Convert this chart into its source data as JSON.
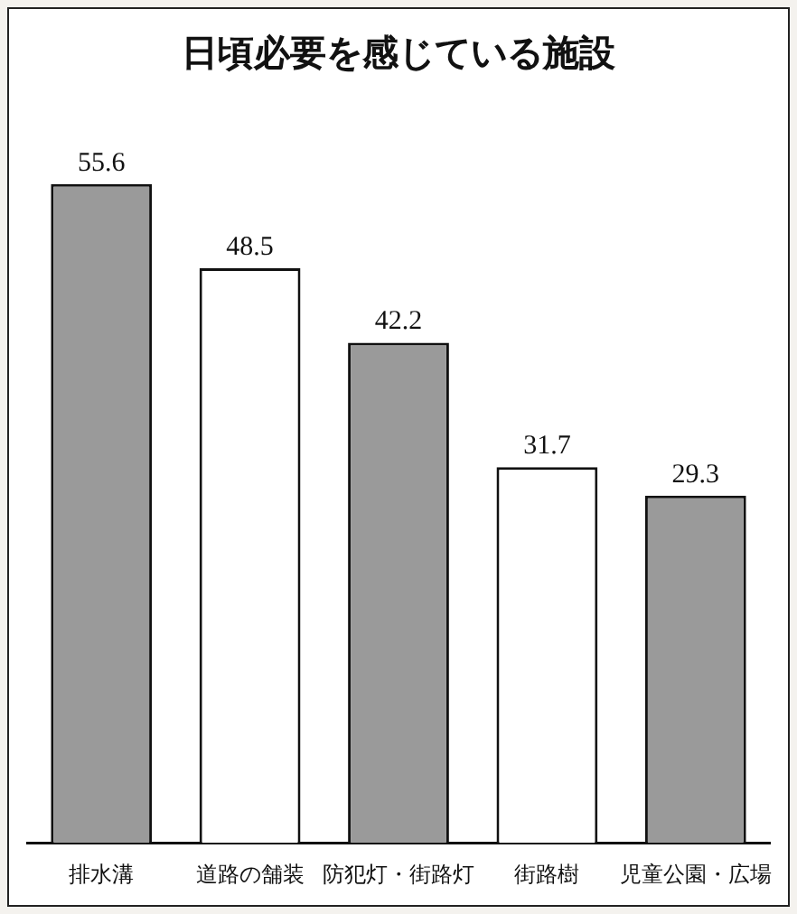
{
  "chart_data": {
    "type": "bar",
    "title": "日頃必要を感じている施設",
    "categories": [
      "排水溝",
      "道路の舗装",
      "防犯灯・街路灯",
      "街路樹",
      "児童公園・広場"
    ],
    "values": [
      55.6,
      48.5,
      42.2,
      31.7,
      29.3
    ],
    "colors": [
      "#9a9a9a",
      "#ffffff",
      "#9a9a9a",
      "#ffffff",
      "#9a9a9a"
    ],
    "data_labels": true,
    "tick_labels": "x",
    "grid": false,
    "legend": false
  }
}
